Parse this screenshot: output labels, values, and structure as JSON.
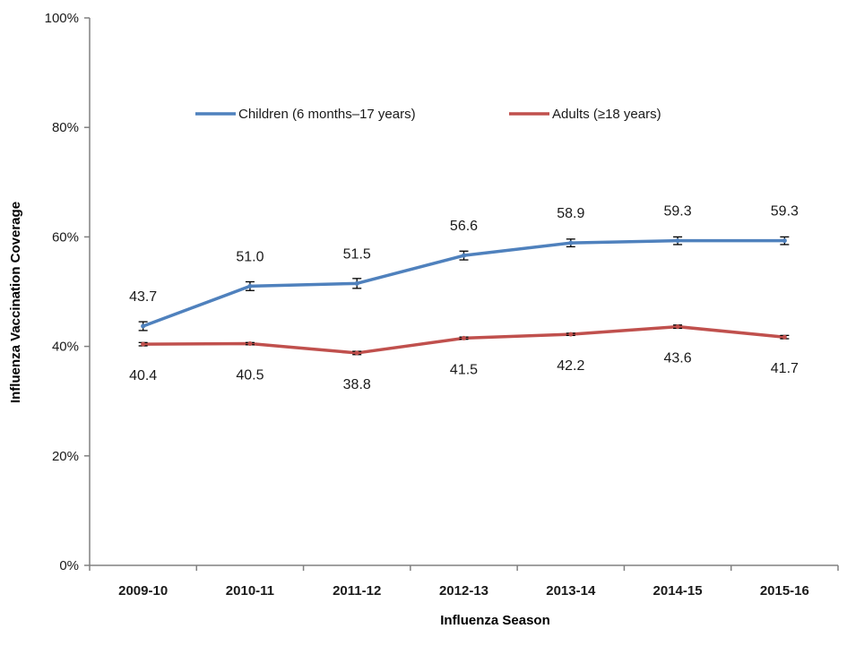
{
  "chart_data": {
    "type": "line",
    "title": "",
    "xlabel": "Influenza Season",
    "ylabel": "Influenza Vaccination  Coverage",
    "categories": [
      "2009-10",
      "2010-11",
      "2011-12",
      "2012-13",
      "2013-14",
      "2014-15",
      "2015-16"
    ],
    "yticks": [
      "0%",
      "20%",
      "40%",
      "60%",
      "80%",
      "100%"
    ],
    "ylim": [
      0,
      100
    ],
    "grid": false,
    "legend_position": "top",
    "error_bars": true,
    "series": [
      {
        "name": "Children (6 months–17 years)",
        "color": "#4F81BD",
        "values": [
          43.7,
          51.0,
          51.5,
          56.6,
          58.9,
          59.3,
          59.3
        ],
        "labels": [
          "43.7",
          "51.0",
          "51.5",
          "56.6",
          "58.9",
          "59.3",
          "59.3"
        ],
        "error": [
          0.8,
          0.8,
          0.9,
          0.8,
          0.7,
          0.7,
          0.7
        ]
      },
      {
        "name": "Adults (≥18 years)",
        "color": "#C0504D",
        "values": [
          40.4,
          40.5,
          38.8,
          41.5,
          42.2,
          43.6,
          41.7
        ],
        "labels": [
          "40.4",
          "40.5",
          "38.8",
          "41.5",
          "42.2",
          "43.6",
          "41.7"
        ],
        "error": [
          0.3,
          0.2,
          0.3,
          0.2,
          0.2,
          0.3,
          0.3
        ]
      }
    ]
  }
}
